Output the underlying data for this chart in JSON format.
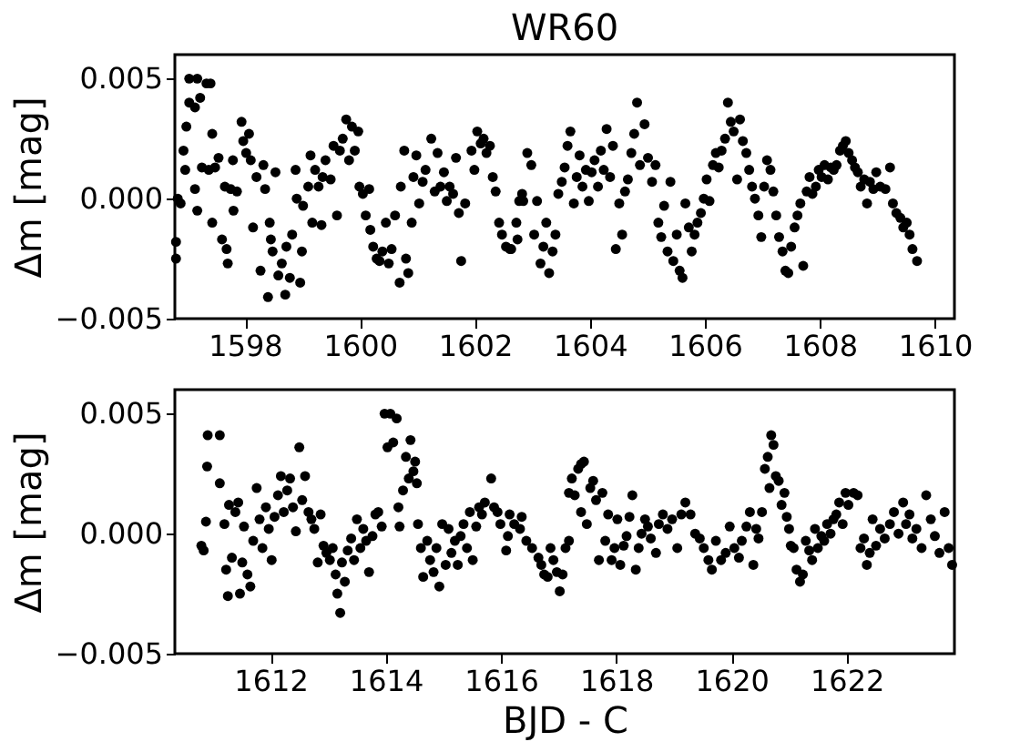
{
  "chart_data": [
    {
      "type": "scatter",
      "title": "WR60",
      "ylabel": "Δm [mag]",
      "marker": "circle",
      "grid": false,
      "xlim": [
        1596.78,
        1610.34
      ],
      "ylim": [
        -0.005,
        0.006
      ],
      "xticks": [
        1598,
        1600,
        1602,
        1604,
        1606,
        1608,
        1610
      ],
      "yticks": [
        {
          "value": -0.005,
          "label": "−0.005"
        },
        {
          "value": 0,
          "label": "0.000"
        },
        {
          "value": 0.005,
          "label": "0.005"
        }
      ],
      "series": [
        {
          "color": "#000000",
          "x": [
            1596.8,
            1596.8,
            1596.83,
            1596.88,
            1596.93,
            1596.96,
            1596.98,
            1597.03,
            1597.03,
            1597.13,
            1597.17,
            1597.22,
            1597.33,
            1597.4,
            1597.13,
            1597.17,
            1597.25,
            1597.37,
            1597.43,
            1597.43,
            1597.48,
            1597.54,
            1597.6,
            1597.65,
            1597.68,
            1597.7,
            1597.75,
            1597.79,
            1597.8,
            1597.86,
            1597.94,
            1597.97,
            1598.02,
            1598.07,
            1598.1,
            1598.14,
            1598.2,
            1598.27,
            1598.32,
            1598.35,
            1598.4,
            1598.43,
            1598.45,
            1598.48,
            1598.53,
            1598.58,
            1598.64,
            1598.7,
            1598.72,
            1598.78,
            1598.82,
            1598.88,
            1598.9,
            1598.96,
            1598.99,
            1599.01,
            1599.1,
            1599.14,
            1599.17,
            1599.22,
            1599.28,
            1599.33,
            1599.35,
            1599.4,
            1599.49,
            1599.54,
            1599.6,
            1599.65,
            1599.7,
            1599.76,
            1599.81,
            1599.86,
            1599.91,
            1599.97,
            1599.99,
            1600.05,
            1600.1,
            1600.16,
            1600.18,
            1600.23,
            1600.29,
            1600.34,
            1600.39,
            1600.45,
            1600.5,
            1600.55,
            1600.61,
            1600.69,
            1600.71,
            1600.77,
            1600.8,
            1600.84,
            1600.9,
            1600.93,
            1600.98,
            1601.03,
            1601.09,
            1601.14,
            1601.24,
            1601.3,
            1601.35,
            1601.4,
            1601.46,
            1601.51,
            1601.56,
            1601.62,
            1601.67,
            1601.72,
            1601.76,
            1601.83,
            1601.94,
            1601.99,
            1602.04,
            1602.1,
            1602.15,
            1602.2,
            1602.26,
            1602.31,
            1602.36,
            1602.42,
            1602.47,
            1602.54,
            1602.63,
            1602.74,
            1602.84,
            1602.61,
            1602.72,
            1602.77,
            1602.82,
            1602.91,
            1602.98,
            1603.03,
            1603.08,
            1603.14,
            1603.19,
            1603.24,
            1603.29,
            1603.35,
            1603.4,
            1603.45,
            1603.51,
            1603.56,
            1603.61,
            1603.66,
            1603.72,
            1603.77,
            1603.82,
            1603.87,
            1603.93,
            1603.98,
            1604.03,
            1604.08,
            1604.14,
            1604.19,
            1604.24,
            1604.29,
            1604.35,
            1604.4,
            1604.45,
            1604.51,
            1604.56,
            1604.61,
            1604.66,
            1604.72,
            1604.77,
            1604.82,
            1604.87,
            1604.95,
            1605.01,
            1605.08,
            1605.14,
            1605.19,
            1605.24,
            1605.29,
            1605.35,
            1605.4,
            1605.45,
            1605.51,
            1605.56,
            1605.61,
            1605.66,
            1605.72,
            1605.77,
            1605.82,
            1605.87,
            1605.93,
            1605.98,
            1606.03,
            1606.08,
            1606.14,
            1606.19,
            1606.24,
            1606.29,
            1606.35,
            1606.4,
            1606.45,
            1606.5,
            1606.56,
            1606.61,
            1606.66,
            1606.72,
            1606.77,
            1606.82,
            1606.87,
            1606.93,
            1606.98,
            1607.03,
            1607.08,
            1607.14,
            1607.19,
            1607.24,
            1607.29,
            1607.35,
            1607.4,
            1607.45,
            1607.5,
            1607.56,
            1607.61,
            1607.66,
            1607.71,
            1607.77,
            1607.82,
            1607.87,
            1607.93,
            1607.98,
            1608.03,
            1608.08,
            1608.14,
            1608.19,
            1608.24,
            1608.29,
            1608.35,
            1608.4,
            1608.45,
            1608.5,
            1608.56,
            1608.61,
            1608.66,
            1608.71,
            1608.77,
            1608.82,
            1608.87,
            1608.93,
            1608.98,
            1609.05,
            1609.14,
            1609.22,
            1609.27,
            1609.33,
            1609.4,
            1609.45,
            1609.51,
            1609.56,
            1609.61,
            1609.69
          ],
          "values": [
            -0.0018,
            -0.0025,
            0.0,
            -0.0002,
            0.002,
            0.0012,
            0.003,
            0.004,
            0.005,
            0.0038,
            0.005,
            0.0042,
            0.0048,
            0.0048,
            0.0004,
            -0.0005,
            0.0013,
            0.0012,
            0.0027,
            -0.001,
            0.0013,
            0.0017,
            -0.0017,
            0.0005,
            -0.0021,
            -0.0027,
            0.0004,
            0.0016,
            -0.0005,
            0.0003,
            0.0032,
            0.0024,
            0.0019,
            0.0027,
            0.0016,
            -0.0012,
            0.0009,
            -0.003,
            0.0014,
            0.0004,
            -0.0041,
            -0.001,
            -0.0017,
            -0.0022,
            0.0011,
            -0.0032,
            -0.0027,
            -0.004,
            -0.002,
            -0.0033,
            -0.0015,
            0.0012,
            0.0,
            -0.0035,
            -0.0022,
            -0.0003,
            0.0005,
            0.0018,
            -0.001,
            0.0012,
            0.0005,
            -0.0011,
            0.0009,
            0.0016,
            0.0008,
            0.0022,
            -0.0007,
            0.002,
            0.0025,
            0.0033,
            0.0016,
            0.003,
            0.002,
            0.0028,
            0.0005,
            0.0002,
            -0.0007,
            0.0004,
            -0.0013,
            -0.002,
            -0.0025,
            -0.0026,
            -0.0022,
            -0.001,
            -0.0027,
            -0.0021,
            -0.0007,
            -0.0035,
            0.0005,
            0.002,
            -0.0025,
            -0.0031,
            -0.001,
            0.0009,
            0.0018,
            -0.0002,
            0.0007,
            0.0012,
            0.0025,
            0.0003,
            0.0019,
            0.0005,
            0.0011,
            -0.0001,
            0.0005,
            0.0002,
            0.0017,
            -0.0006,
            -0.0026,
            -0.0002,
            0.002,
            0.0012,
            0.0028,
            0.0023,
            0.0025,
            0.0019,
            0.0022,
            0.0009,
            0.0003,
            -0.001,
            -0.0015,
            -0.002,
            -0.0021,
            -0.0017,
            -0.0001,
            -0.0021,
            -0.001,
            -0.0001,
            0.0002,
            0.0019,
            0.0014,
            -0.0015,
            -0.0001,
            -0.0027,
            -0.002,
            -0.001,
            -0.0031,
            -0.0022,
            -0.0015,
            0.0002,
            0.0007,
            0.0013,
            0.0022,
            0.0028,
            -0.0002,
            0.0009,
            0.0018,
            0.0005,
            0.0012,
            -0.0001,
            0.0011,
            0.0016,
            0.0005,
            0.002,
            0.0012,
            0.0029,
            0.0009,
            0.0022,
            -0.0021,
            -0.0002,
            -0.0015,
            0.0003,
            0.0008,
            0.0019,
            0.0027,
            0.004,
            0.0014,
            0.0031,
            0.0017,
            0.0007,
            0.0014,
            -0.001,
            -0.0016,
            -0.0003,
            -0.0022,
            0.0007,
            -0.0026,
            -0.0015,
            -0.003,
            -0.0033,
            -0.0002,
            -0.0012,
            -0.0022,
            -0.0015,
            -0.001,
            -0.0006,
            0.0,
            0.0008,
            -0.0001,
            0.0014,
            0.0019,
            0.0013,
            0.002,
            0.0025,
            0.004,
            0.0032,
            0.0028,
            0.0008,
            0.0033,
            0.0024,
            0.0019,
            0.0012,
            0.0005,
            0.0,
            -0.0007,
            -0.0016,
            0.0005,
            0.0016,
            0.0012,
            0.0003,
            -0.0007,
            -0.0016,
            -0.0022,
            -0.003,
            -0.0031,
            -0.002,
            -0.0012,
            -0.0007,
            -0.0002,
            -0.0028,
            0.0003,
            0.0009,
            0.0002,
            0.0005,
            0.0012,
            0.0009,
            0.0014,
            0.0008,
            0.0013,
            0.0012,
            0.0014,
            0.002,
            0.0022,
            0.0024,
            0.0019,
            0.0016,
            0.0013,
            0.0011,
            0.0005,
            0.0008,
            -0.0002,
            0.0007,
            0.0004,
            0.0011,
            0.0005,
            0.0004,
            0.0013,
            -0.0002,
            -0.0006,
            -0.0008,
            -0.0012,
            -0.001,
            -0.0015,
            -0.0021,
            -0.0026
          ]
        }
      ]
    },
    {
      "type": "scatter",
      "xlabel": "BJD - C",
      "ylabel": "Δm [mag]",
      "marker": "circle",
      "grid": false,
      "xlim": [
        1610.34,
        1623.87
      ],
      "ylim": [
        -0.005,
        0.006
      ],
      "xticks": [
        1612,
        1614,
        1616,
        1618,
        1620,
        1622
      ],
      "yticks": [
        {
          "value": -0.005,
          "label": "−0.005"
        },
        {
          "value": 0,
          "label": "0.000"
        },
        {
          "value": 0.005,
          "label": "0.005"
        }
      ],
      "series": [
        {
          "color": "#000000",
          "x": [
            1610.8,
            1610.84,
            1610.88,
            1610.9,
            1610.91,
            1611.12,
            1611.12,
            1611.2,
            1611.23,
            1611.26,
            1611.28,
            1611.33,
            1611.39,
            1611.44,
            1611.47,
            1611.51,
            1611.54,
            1611.6,
            1611.65,
            1611.7,
            1611.76,
            1611.81,
            1611.86,
            1611.92,
            1611.97,
            1612.02,
            1612.07,
            1612.13,
            1612.18,
            1612.23,
            1612.29,
            1612.34,
            1612.39,
            1612.44,
            1612.5,
            1612.55,
            1612.6,
            1612.66,
            1612.71,
            1612.76,
            1612.82,
            1612.87,
            1612.92,
            1612.97,
            1613.03,
            1613.08,
            1613.13,
            1613.16,
            1613.21,
            1613.24,
            1613.29,
            1613.34,
            1613.4,
            1613.45,
            1613.5,
            1613.56,
            1613.61,
            1613.66,
            1613.71,
            1613.77,
            1613.82,
            1613.87,
            1613.93,
            1613.98,
            1614.03,
            1614.08,
            1614.13,
            1614.19,
            1614.22,
            1614.24,
            1614.3,
            1614.35,
            1614.4,
            1614.43,
            1614.48,
            1614.51,
            1614.54,
            1614.56,
            1614.61,
            1614.65,
            1614.72,
            1614.77,
            1614.83,
            1614.88,
            1614.93,
            1614.98,
            1615.04,
            1615.09,
            1615.14,
            1615.2,
            1615.25,
            1615.3,
            1615.35,
            1615.41,
            1615.46,
            1615.51,
            1615.57,
            1615.62,
            1615.67,
            1615.72,
            1615.83,
            1615.88,
            1615.94,
            1615.99,
            1616.09,
            1616.15,
            1616.36,
            1616.12,
            1616.23,
            1616.33,
            1616.44,
            1616.54,
            1616.65,
            1616.7,
            1616.75,
            1616.81,
            1616.86,
            1616.91,
            1616.97,
            1617.02,
            1617.07,
            1617.12,
            1617.18,
            1617.18,
            1617.23,
            1617.28,
            1617.34,
            1617.39,
            1617.44,
            1617.39,
            1617.49,
            1617.55,
            1617.6,
            1617.65,
            1617.7,
            1617.76,
            1617.81,
            1617.86,
            1617.92,
            1617.97,
            1618.02,
            1618.07,
            1618.13,
            1618.18,
            1618.23,
            1618.28,
            1618.34,
            1618.39,
            1618.44,
            1618.5,
            1618.55,
            1618.6,
            1618.69,
            1618.74,
            1618.81,
            1618.89,
            1618.97,
            1619.06,
            1619.13,
            1619.2,
            1619.29,
            1619.37,
            1619.45,
            1619.52,
            1619.6,
            1619.66,
            1619.73,
            1619.82,
            1619.9,
            1619.97,
            1620.05,
            1620.13,
            1620.18,
            1620.26,
            1620.32,
            1620.38,
            1620.43,
            1620.47,
            1620.53,
            1620.58,
            1620.63,
            1620.66,
            1620.69,
            1620.73,
            1620.77,
            1620.82,
            1620.87,
            1620.92,
            1620.96,
            1621.0,
            1621.03,
            1621.08,
            1621.13,
            1621.19,
            1621.24,
            1621.29,
            1621.35,
            1621.4,
            1621.45,
            1621.5,
            1621.56,
            1621.61,
            1621.66,
            1621.72,
            1621.77,
            1621.82,
            1621.87,
            1621.93,
            1621.98,
            1622.03,
            1622.12,
            1622.19,
            1622.24,
            1622.3,
            1622.35,
            1622.4,
            1622.45,
            1622.51,
            1622.58,
            1622.66,
            1622.75,
            1622.82,
            1622.9,
            1622.98,
            1623.03,
            1623.09,
            1623.14,
            1623.21,
            1623.3,
            1623.38,
            1623.46,
            1623.53,
            1623.61,
            1623.7,
            1623.77,
            1623.83
          ],
          "values": [
            -0.0005,
            -0.0007,
            0.0005,
            0.0028,
            0.0041,
            0.0021,
            0.0041,
            0.0004,
            -0.0015,
            -0.0026,
            0.0012,
            -0.001,
            0.0009,
            0.0013,
            -0.0025,
            -0.0012,
            0.0003,
            -0.0017,
            -0.0022,
            -0.0003,
            0.0019,
            0.0006,
            -0.0006,
            0.0011,
            0.0002,
            -0.0011,
            0.0007,
            0.0016,
            0.0024,
            0.0009,
            0.0018,
            0.0023,
            0.0011,
            0.0001,
            0.0036,
            0.0014,
            0.0024,
            0.0009,
            0.0006,
            0.0002,
            -0.0012,
            0.0008,
            -0.0005,
            -0.0008,
            -0.0011,
            -0.0006,
            -0.0017,
            -0.0025,
            -0.0033,
            -0.0012,
            -0.002,
            -0.0007,
            -0.0002,
            -0.0011,
            0.0006,
            -0.0006,
            0.0002,
            -0.0003,
            -0.0016,
            -0.0001,
            0.0008,
            0.0009,
            0.0003,
            0.005,
            0.0036,
            0.005,
            0.0038,
            0.0048,
            0.0011,
            0.0003,
            0.0018,
            0.0032,
            0.0023,
            0.0039,
            0.0026,
            0.003,
            0.0021,
            0.0004,
            -0.0006,
            -0.0018,
            -0.0003,
            -0.0011,
            -0.0016,
            -0.0006,
            -0.0022,
            0.0004,
            -0.0013,
            0.0002,
            -0.0008,
            -0.0003,
            -0.0013,
            -0.0001,
            0.0004,
            -0.0006,
            0.0009,
            -0.0011,
            0.0003,
            0.0011,
            0.0008,
            0.0013,
            0.0023,
            0.0011,
            0.0009,
            0.0004,
            -0.0007,
            0.0008,
            0.0007,
            -0.0001,
            0.0004,
            0.0002,
            -0.0003,
            -0.0006,
            -0.001,
            -0.0013,
            -0.0017,
            -0.0018,
            -0.0006,
            -0.0011,
            -0.0016,
            -0.0024,
            -0.0017,
            -0.0006,
            -0.0003,
            0.0017,
            0.0023,
            0.0016,
            0.0027,
            0.0029,
            0.003,
            0.0009,
            0.0004,
            0.0019,
            0.0022,
            0.0014,
            -0.0011,
            0.0017,
            -0.0003,
            0.0008,
            -0.0011,
            -0.0006,
            0.0006,
            -0.0013,
            -0.0005,
            -0.0001,
            0.0007,
            0.0016,
            -0.0015,
            -0.0006,
            0.0,
            0.0006,
            0.0003,
            -0.0002,
            -0.0008,
            0.0004,
            0.0008,
            0.0002,
            0.0006,
            -0.0006,
            0.0008,
            0.0013,
            0.0008,
            0.0,
            -0.0002,
            -0.0006,
            -0.0011,
            -0.0015,
            -0.0003,
            -0.0011,
            -0.0008,
            0.0003,
            -0.0006,
            -0.001,
            -0.0003,
            0.0003,
            0.0009,
            -0.0013,
            0.0002,
            -0.0002,
            0.0009,
            0.0027,
            0.0032,
            0.0019,
            0.0041,
            0.0037,
            0.0024,
            0.0022,
            0.0012,
            0.0017,
            0.0007,
            0.0002,
            -0.0005,
            -0.0006,
            -0.0015,
            -0.002,
            -0.0017,
            -0.0003,
            -0.0007,
            -0.0011,
            0.0002,
            -0.0006,
            -0.0001,
            -0.0003,
            0.0004,
            0.0,
            0.0006,
            0.0008,
            0.0013,
            0.0004,
            0.0017,
            0.0012,
            0.0017,
            0.0016,
            -0.0006,
            -0.0002,
            -0.0013,
            -0.0008,
            0.0006,
            -0.0005,
            0.0002,
            -0.0002,
            0.0004,
            0.0009,
            0.0,
            0.0013,
            0.0004,
            0.0008,
            -0.0002,
            0.0002,
            -0.0006,
            0.0016,
            0.0006,
            -0.0001,
            -0.0008,
            0.0009,
            -0.0006,
            -0.0013
          ]
        }
      ]
    }
  ]
}
